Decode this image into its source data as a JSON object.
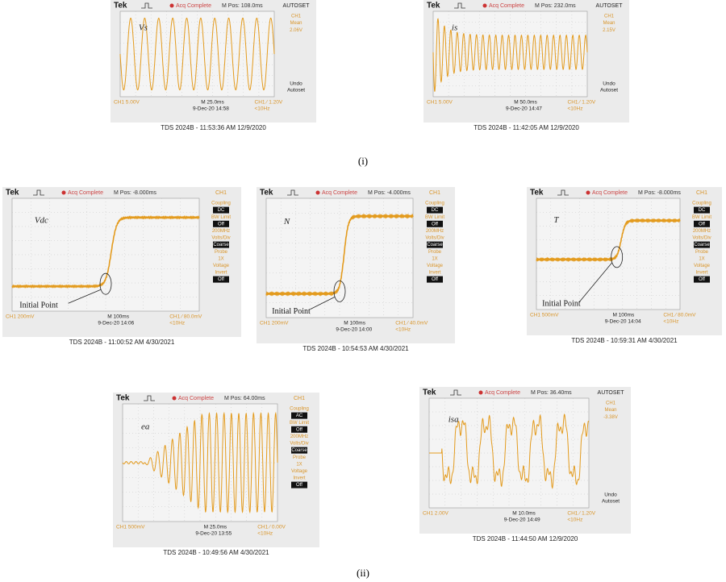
{
  "panels": [
    {
      "brand": "Tek",
      "status": "Acq Complete",
      "position": "M Pos: 108.0ms",
      "menu_title": "AUTOSET",
      "menu": [
        {
          "text": "CH1"
        },
        {
          "text": "Mean"
        },
        {
          "text": "2.06V"
        }
      ],
      "menu_footer": [
        "Undo",
        "Autoset"
      ],
      "channel": "CH1  5.00V",
      "timebase": "M 25.0ms",
      "trigger": "CH1 ⁄ 1.20V",
      "date": "9-Dec-20 14:58",
      "frequency": "<10Hz",
      "caption": "TDS 2024B - 11:53:36 AM   12/9/2020",
      "signal": "Vs"
    },
    {
      "brand": "Tek",
      "status": "Acq Complete",
      "position": "M Pos: 232.0ms",
      "menu_title": "AUTOSET",
      "menu": [
        {
          "text": "CH1"
        },
        {
          "text": "Mean"
        },
        {
          "text": "2.15V"
        }
      ],
      "menu_footer": [
        "Undo",
        "Autoset"
      ],
      "channel": "CH1  5.00V",
      "timebase": "M 50.0ms",
      "trigger": "CH1 ⁄ 1.20V",
      "date": "9-Dec-20 14:47",
      "frequency": "<10Hz",
      "caption": "TDS 2024B - 11:42:05 AM   12/9/2020",
      "signal": "is"
    },
    {
      "brand": "Tek",
      "status": "Acq Complete",
      "position": "M Pos: -8.000ms",
      "menu_title": "CH1",
      "menu": [
        {
          "text": "Coupling"
        },
        {
          "text": "DC",
          "boxed": true
        },
        {
          "text": "BW Limit"
        },
        {
          "text": "Off",
          "boxed": true
        },
        {
          "text": "200MHz"
        },
        {
          "text": "Volts/Div"
        },
        {
          "text": "Coarse",
          "boxed": true
        },
        {
          "text": "Probe"
        },
        {
          "text": "1X"
        },
        {
          "text": "Voltage"
        },
        {
          "text": "Invert"
        },
        {
          "text": "Off",
          "boxed": true
        }
      ],
      "menu_footer": [],
      "channel": "CH1  200mV",
      "timebase": "M 100ms",
      "trigger": "CH1 ⁄ 80.0mV",
      "date": "9-Dec-20   14:06",
      "frequency": "<10Hz",
      "caption": "TDS 2024B - 11:00:52 AM   4/30/2021",
      "signal": "Vdc",
      "annotation": "Initial Point"
    },
    {
      "brand": "Tek",
      "status": "Acq Complete",
      "position": "M Pos: -4.000ms",
      "menu_title": "CH1",
      "menu": [
        {
          "text": "Coupling"
        },
        {
          "text": "DC",
          "boxed": true
        },
        {
          "text": "BW Limit"
        },
        {
          "text": "Off",
          "boxed": true
        },
        {
          "text": "200MHz"
        },
        {
          "text": "Volts/Div"
        },
        {
          "text": "Coarse",
          "boxed": true
        },
        {
          "text": "Probe"
        },
        {
          "text": "1X"
        },
        {
          "text": "Voltage"
        },
        {
          "text": "Invert"
        },
        {
          "text": "Off",
          "boxed": true
        }
      ],
      "menu_footer": [],
      "channel": "CH1  200mV",
      "timebase": "M 100ms",
      "trigger": "CH1 ⁄ 40.0mV",
      "date": "9-Dec-20   14:00",
      "frequency": "<10Hz",
      "caption": "TDS 2024B - 10:54:53 AM   4/30/2021",
      "signal": "N",
      "annotation": "Initial Point"
    },
    {
      "brand": "Tek",
      "status": "Acq Complete",
      "position": "M Pos: -8.000ms",
      "menu_title": "CH1",
      "menu": [
        {
          "text": "Coupling"
        },
        {
          "text": "DC",
          "boxed": true
        },
        {
          "text": "BW Limit"
        },
        {
          "text": "Off",
          "boxed": true
        },
        {
          "text": "200MHz"
        },
        {
          "text": "Volts/Div"
        },
        {
          "text": "Coarse",
          "boxed": true
        },
        {
          "text": "Probe"
        },
        {
          "text": "1X"
        },
        {
          "text": "Voltage"
        },
        {
          "text": "Invert"
        },
        {
          "text": "Off",
          "boxed": true
        }
      ],
      "menu_footer": [],
      "channel": "CH1  500mV",
      "timebase": "M 100ms",
      "trigger": "CH1 ⁄ 80.0mV",
      "date": "9-Dec-20   14:04",
      "frequency": "<10Hz",
      "caption": "TDS 2024B - 10:59:31 AM   4/30/2021",
      "signal": "T",
      "annotation": "Initial Point"
    },
    {
      "brand": "Tek",
      "status": "Acq Complete",
      "position": "M Pos: 64.00ms",
      "menu_title": "CH1",
      "menu": [
        {
          "text": "Coupling"
        },
        {
          "text": "AC",
          "boxed": true
        },
        {
          "text": "BW Limit"
        },
        {
          "text": "Off",
          "boxed": true
        },
        {
          "text": "200MHz"
        },
        {
          "text": "Volts/Div"
        },
        {
          "text": "Coarse",
          "boxed": true
        },
        {
          "text": "Probe"
        },
        {
          "text": "1X"
        },
        {
          "text": "Voltage"
        },
        {
          "text": "Invert"
        },
        {
          "text": "Off",
          "boxed": true
        }
      ],
      "menu_footer": [],
      "channel": "CH1  500mV",
      "timebase": "M 25.0ms",
      "trigger": "CH1 ⁄ 0.00V",
      "date": "9-Dec-20   13:55",
      "frequency": "<10Hz",
      "caption": "TDS 2024B - 10:49:56 AM   4/30/2021",
      "signal": "ea"
    },
    {
      "brand": "Tek",
      "status": "Acq Complete",
      "position": "M Pos: 36.40ms",
      "menu_title": "AUTOSET",
      "menu": [
        {
          "text": "CH1"
        },
        {
          "text": "Mean"
        },
        {
          "text": "-3.38V"
        }
      ],
      "menu_footer": [
        "Undo",
        "Autoset"
      ],
      "channel": "CH1  2.00V",
      "timebase": "M 10.0ms",
      "trigger": "CH1 ⁄ 1.20V",
      "date": "9-Dec-20 14:49",
      "frequency": "<10Hz",
      "caption": "TDS 2024B - 11:44:50 AM   12/9/2020",
      "signal": "isa"
    }
  ],
  "row_labels": [
    "(i)",
    "(ii)"
  ]
}
